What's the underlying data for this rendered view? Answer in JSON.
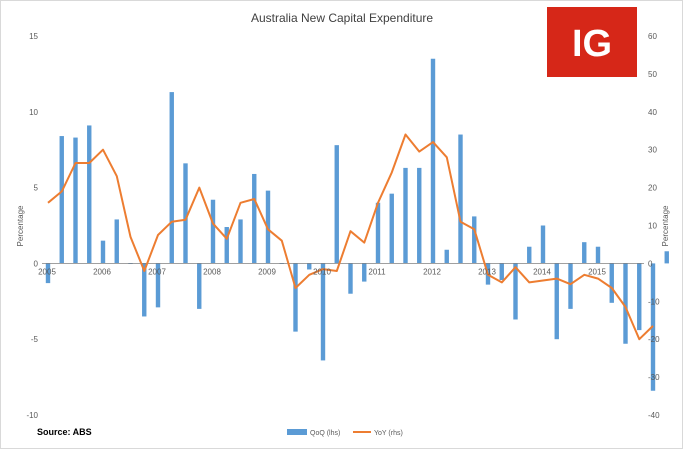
{
  "chart_data": {
    "type": "bar+line",
    "title": "Australia New Capital Expenditure",
    "ylabel_left": "Percentage",
    "ylabel_right": "Percentage",
    "ylim_left": [
      -10,
      15
    ],
    "ylim_right": [
      -40,
      60
    ],
    "yticks_left": [
      "15",
      "10",
      "5",
      "0",
      "-5",
      "-10"
    ],
    "yticks_right": [
      "60",
      "50",
      "40",
      "30",
      "20",
      "10",
      "0",
      "-10",
      "-20",
      "-30",
      "-40"
    ],
    "x_year_labels": [
      "2005",
      "2006",
      "2007",
      "2008",
      "2009",
      "2010",
      "2011",
      "2012",
      "2013",
      "2014",
      "2015"
    ],
    "x_start_year": 2005,
    "periods_per_year": 4,
    "source": "Source: ABS",
    "series": [
      {
        "name": "QoQ (lhs)",
        "type": "bar",
        "axis": "left",
        "color": "#5b9bd5",
        "values": [
          -1.3,
          8.4,
          8.3,
          9.1,
          1.5,
          2.9,
          0.0,
          -3.5,
          -2.9,
          11.3,
          6.6,
          -3.0,
          4.2,
          2.4,
          2.9,
          5.9,
          4.8,
          0.0,
          -4.5,
          -0.4,
          -6.4,
          7.8,
          -2.0,
          -1.2,
          4.0,
          4.6,
          6.3,
          6.3,
          13.5,
          0.9,
          8.5,
          3.1,
          -1.4,
          -1.1,
          -3.7,
          1.1,
          2.5,
          -5.0,
          -3.0,
          1.4,
          1.1,
          -2.6,
          -5.3,
          -4.4,
          -8.4,
          0.8
        ]
      },
      {
        "name": "YoY (rhs)",
        "type": "line",
        "axis": "right",
        "color": "#ed7d31",
        "values": [
          16,
          19,
          26.5,
          26.5,
          30,
          23,
          7,
          -2,
          7.5,
          11,
          11.5,
          20,
          10.5,
          6.5,
          16,
          17,
          9,
          6,
          -6.5,
          -3,
          -1.5,
          -2,
          8.5,
          5.5,
          16,
          24,
          34,
          29.5,
          32,
          28,
          11,
          9,
          -3,
          -5,
          -1,
          -5,
          -4.5,
          -4,
          -5.5,
          -3,
          -4,
          -6.5,
          -11.5,
          -20,
          -16.5
        ]
      }
    ],
    "legend_position": "bottom-center"
  },
  "brand": {
    "logo_text": "IG",
    "logo_color": "#d62718"
  }
}
